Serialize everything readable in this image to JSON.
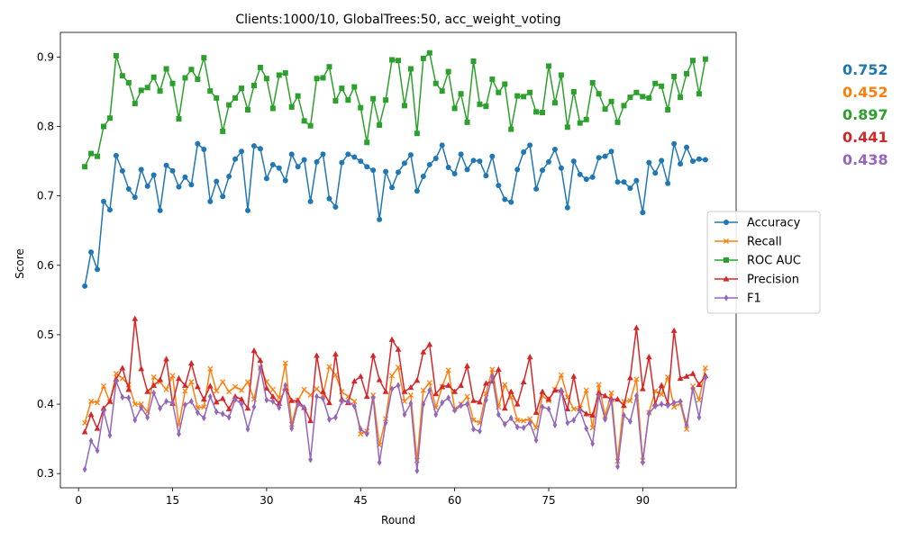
{
  "chart_data": {
    "type": "line",
    "title": "Clients:1000/10, GlobalTrees:50, acc_weight_voting",
    "xlabel": "Round",
    "ylabel": "Score",
    "xlim": [
      -2.9,
      104.9
    ],
    "ylim": [
      0.2795,
      0.9355
    ],
    "x_ticks": [
      0,
      15,
      30,
      45,
      60,
      75,
      90
    ],
    "y_ticks": [
      0.3,
      0.4,
      0.5,
      0.6,
      0.7,
      0.8,
      0.9
    ],
    "x_tick_labels": [
      "0",
      "15",
      "30",
      "45",
      "60",
      "75",
      "90"
    ],
    "y_tick_labels": [
      "0.3",
      "0.4",
      "0.5",
      "0.6",
      "0.7",
      "0.8",
      "0.9"
    ],
    "grid": false,
    "legend_position": "center-right",
    "x_start": 1,
    "series": [
      {
        "name": "Accuracy",
        "color": "#1f77b4",
        "marker": "circle",
        "values": [
          0.57,
          0.619,
          0.594,
          0.692,
          0.68,
          0.758,
          0.736,
          0.71,
          0.698,
          0.738,
          0.714,
          0.73,
          0.679,
          0.744,
          0.736,
          0.713,
          0.727,
          0.716,
          0.775,
          0.767,
          0.692,
          0.721,
          0.699,
          0.728,
          0.753,
          0.764,
          0.679,
          0.772,
          0.768,
          0.725,
          0.745,
          0.74,
          0.722,
          0.76,
          0.742,
          0.752,
          0.692,
          0.749,
          0.76,
          0.696,
          0.684,
          0.748,
          0.76,
          0.756,
          0.75,
          0.742,
          0.737,
          0.666,
          0.735,
          0.712,
          0.734,
          0.747,
          0.759,
          0.707,
          0.728,
          0.745,
          0.754,
          0.773,
          0.741,
          0.732,
          0.76,
          0.738,
          0.751,
          0.75,
          0.729,
          0.757,
          0.715,
          0.695,
          0.691,
          0.738,
          0.763,
          0.773,
          0.71,
          0.737,
          0.749,
          0.767,
          0.74,
          0.683,
          0.75,
          0.731,
          0.724,
          0.727,
          0.755,
          0.757,
          0.764,
          0.72,
          0.72,
          0.711,
          0.722,
          0.676,
          0.748,
          0.733,
          0.751,
          0.718,
          0.775,
          0.746,
          0.77,
          0.75,
          0.753,
          0.752
        ]
      },
      {
        "name": "Recall",
        "color": "#ff7f0e",
        "marker": "x",
        "values": [
          0.373,
          0.404,
          0.402,
          0.426,
          0.403,
          0.444,
          0.437,
          0.428,
          0.4,
          0.4,
          0.389,
          0.439,
          0.432,
          0.421,
          0.441,
          0.37,
          0.419,
          0.432,
          0.395,
          0.396,
          0.451,
          0.419,
          0.432,
          0.418,
          0.425,
          0.42,
          0.432,
          0.407,
          0.452,
          0.432,
          0.421,
          0.409,
          0.459,
          0.371,
          0.406,
          0.421,
          0.413,
          0.422,
          0.413,
          0.454,
          0.442,
          0.418,
          0.411,
          0.404,
          0.357,
          0.361,
          0.413,
          0.341,
          0.379,
          0.441,
          0.453,
          0.404,
          0.413,
          0.319,
          0.42,
          0.431,
          0.395,
          0.425,
          0.449,
          0.393,
          0.4,
          0.411,
          0.377,
          0.373,
          0.415,
          0.45,
          0.396,
          0.428,
          0.41,
          0.377,
          0.376,
          0.379,
          0.366,
          0.412,
          0.405,
          0.421,
          0.442,
          0.41,
          0.393,
          0.394,
          0.42,
          0.366,
          0.428,
          0.383,
          0.416,
          0.318,
          0.404,
          0.405,
          0.436,
          0.319,
          0.388,
          0.419,
          0.414,
          0.439,
          0.396,
          0.401,
          0.364,
          0.426,
          0.406,
          0.452
        ]
      },
      {
        "name": "ROC AUC",
        "color": "#2ca02c",
        "marker": "square",
        "values": [
          0.742,
          0.761,
          0.757,
          0.8,
          0.812,
          0.902,
          0.873,
          0.863,
          0.833,
          0.852,
          0.856,
          0.871,
          0.851,
          0.883,
          0.862,
          0.811,
          0.87,
          0.882,
          0.868,
          0.899,
          0.851,
          0.841,
          0.793,
          0.831,
          0.841,
          0.855,
          0.824,
          0.859,
          0.885,
          0.869,
          0.826,
          0.874,
          0.877,
          0.828,
          0.844,
          0.808,
          0.801,
          0.869,
          0.87,
          0.886,
          0.837,
          0.855,
          0.838,
          0.857,
          0.827,
          0.777,
          0.84,
          0.802,
          0.838,
          0.896,
          0.895,
          0.83,
          0.883,
          0.79,
          0.898,
          0.906,
          0.862,
          0.851,
          0.879,
          0.826,
          0.847,
          0.806,
          0.894,
          0.832,
          0.829,
          0.868,
          0.849,
          0.861,
          0.796,
          0.844,
          0.843,
          0.849,
          0.821,
          0.82,
          0.887,
          0.834,
          0.874,
          0.799,
          0.85,
          0.805,
          0.81,
          0.863,
          0.847,
          0.825,
          0.836,
          0.806,
          0.83,
          0.842,
          0.849,
          0.843,
          0.841,
          0.862,
          0.858,
          0.824,
          0.872,
          0.842,
          0.876,
          0.895,
          0.847,
          0.897
        ]
      },
      {
        "name": "Precision",
        "color": "#d62728",
        "marker": "triangle",
        "values": [
          0.36,
          0.385,
          0.365,
          0.394,
          0.404,
          0.436,
          0.452,
          0.421,
          0.523,
          0.451,
          0.418,
          0.427,
          0.435,
          0.465,
          0.401,
          0.437,
          0.427,
          0.459,
          0.425,
          0.407,
          0.426,
          0.403,
          0.408,
          0.393,
          0.411,
          0.407,
          0.394,
          0.477,
          0.463,
          0.423,
          0.411,
          0.401,
          0.423,
          0.405,
          0.405,
          0.395,
          0.376,
          0.47,
          0.418,
          0.402,
          0.472,
          0.407,
          0.402,
          0.433,
          0.44,
          0.411,
          0.47,
          0.435,
          0.418,
          0.493,
          0.479,
          0.418,
          0.424,
          0.434,
          0.475,
          0.486,
          0.415,
          0.425,
          0.427,
          0.418,
          0.427,
          0.455,
          0.405,
          0.403,
          0.43,
          0.433,
          0.45,
          0.394,
          0.418,
          0.4,
          0.432,
          0.468,
          0.388,
          0.418,
          0.407,
          0.42,
          0.42,
          0.393,
          0.44,
          0.393,
          0.386,
          0.384,
          0.416,
          0.412,
          0.407,
          0.407,
          0.398,
          0.438,
          0.51,
          0.422,
          0.468,
          0.4,
          0.427,
          0.401,
          0.506,
          0.437,
          0.44,
          0.444,
          0.428,
          0.441
        ]
      },
      {
        "name": "F1",
        "color": "#9467bd",
        "marker": "diamond",
        "values": [
          0.306,
          0.347,
          0.333,
          0.39,
          0.355,
          0.433,
          0.41,
          0.409,
          0.377,
          0.395,
          0.381,
          0.416,
          0.394,
          0.404,
          0.402,
          0.357,
          0.399,
          0.404,
          0.388,
          0.38,
          0.411,
          0.389,
          0.386,
          0.381,
          0.407,
          0.4,
          0.364,
          0.396,
          0.452,
          0.406,
          0.404,
          0.395,
          0.427,
          0.365,
          0.4,
          0.395,
          0.32,
          0.411,
          0.408,
          0.378,
          0.381,
          0.404,
          0.404,
          0.397,
          0.364,
          0.357,
          0.409,
          0.316,
          0.373,
          0.422,
          0.427,
          0.385,
          0.401,
          0.304,
          0.4,
          0.42,
          0.385,
          0.402,
          0.409,
          0.391,
          0.398,
          0.4,
          0.364,
          0.361,
          0.406,
          0.44,
          0.385,
          0.371,
          0.38,
          0.367,
          0.366,
          0.373,
          0.348,
          0.396,
          0.393,
          0.37,
          0.42,
          0.373,
          0.377,
          0.391,
          0.365,
          0.343,
          0.412,
          0.378,
          0.405,
          0.31,
          0.384,
          0.375,
          0.412,
          0.316,
          0.387,
          0.397,
          0.4,
          0.398,
          0.402,
          0.404,
          0.37,
          0.422,
          0.381,
          0.438
        ]
      }
    ],
    "final_values": [
      {
        "text": "0.752",
        "color": "#1f77b4"
      },
      {
        "text": "0.452",
        "color": "#ff7f0e"
      },
      {
        "text": "0.897",
        "color": "#2ca02c"
      },
      {
        "text": "0.441",
        "color": "#d62728"
      },
      {
        "text": "0.438",
        "color": "#9467bd"
      }
    ]
  }
}
